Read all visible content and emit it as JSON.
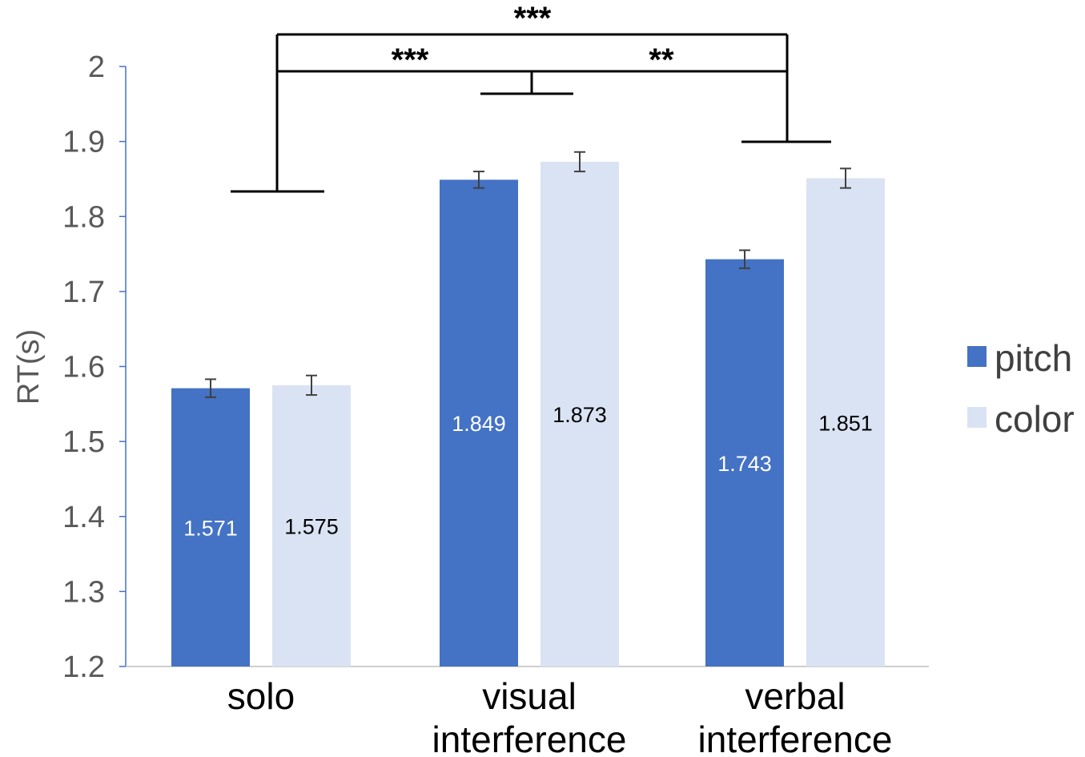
{
  "chart_data": {
    "type": "bar",
    "title": "",
    "xlabel": "",
    "ylabel": "RT(s)",
    "ylim": [
      1.2,
      2.0
    ],
    "yticks": [
      "1.2",
      "1.3",
      "1.4",
      "1.5",
      "1.6",
      "1.7",
      "1.8",
      "1.9",
      "2"
    ],
    "categories": [
      [
        "solo"
      ],
      [
        "visual",
        "interference"
      ],
      [
        "verbal",
        "interference"
      ]
    ],
    "series": [
      {
        "name": "pitch",
        "color": "#4472C4",
        "label_color": "#ffffff",
        "values": [
          1.571,
          1.849,
          1.743
        ],
        "labels": [
          "1.571",
          "1.849",
          "1.743"
        ],
        "error": [
          0.012,
          0.011,
          0.012
        ]
      },
      {
        "name": "color",
        "color": "#DAE3F3",
        "label_color": "#000000",
        "values": [
          1.575,
          1.873,
          1.851
        ],
        "labels": [
          "1.575",
          "1.873",
          "1.851"
        ],
        "error": [
          0.013,
          0.013,
          0.013
        ]
      }
    ],
    "legend": {
      "position": "right"
    },
    "grid": false,
    "significance": [
      {
        "from": "solo",
        "to": "verbal interference",
        "label": "***"
      },
      {
        "from": "solo",
        "to": "visual interference",
        "label": "***"
      },
      {
        "from": "visual interference",
        "to": "verbal interference",
        "label": "**"
      }
    ]
  }
}
